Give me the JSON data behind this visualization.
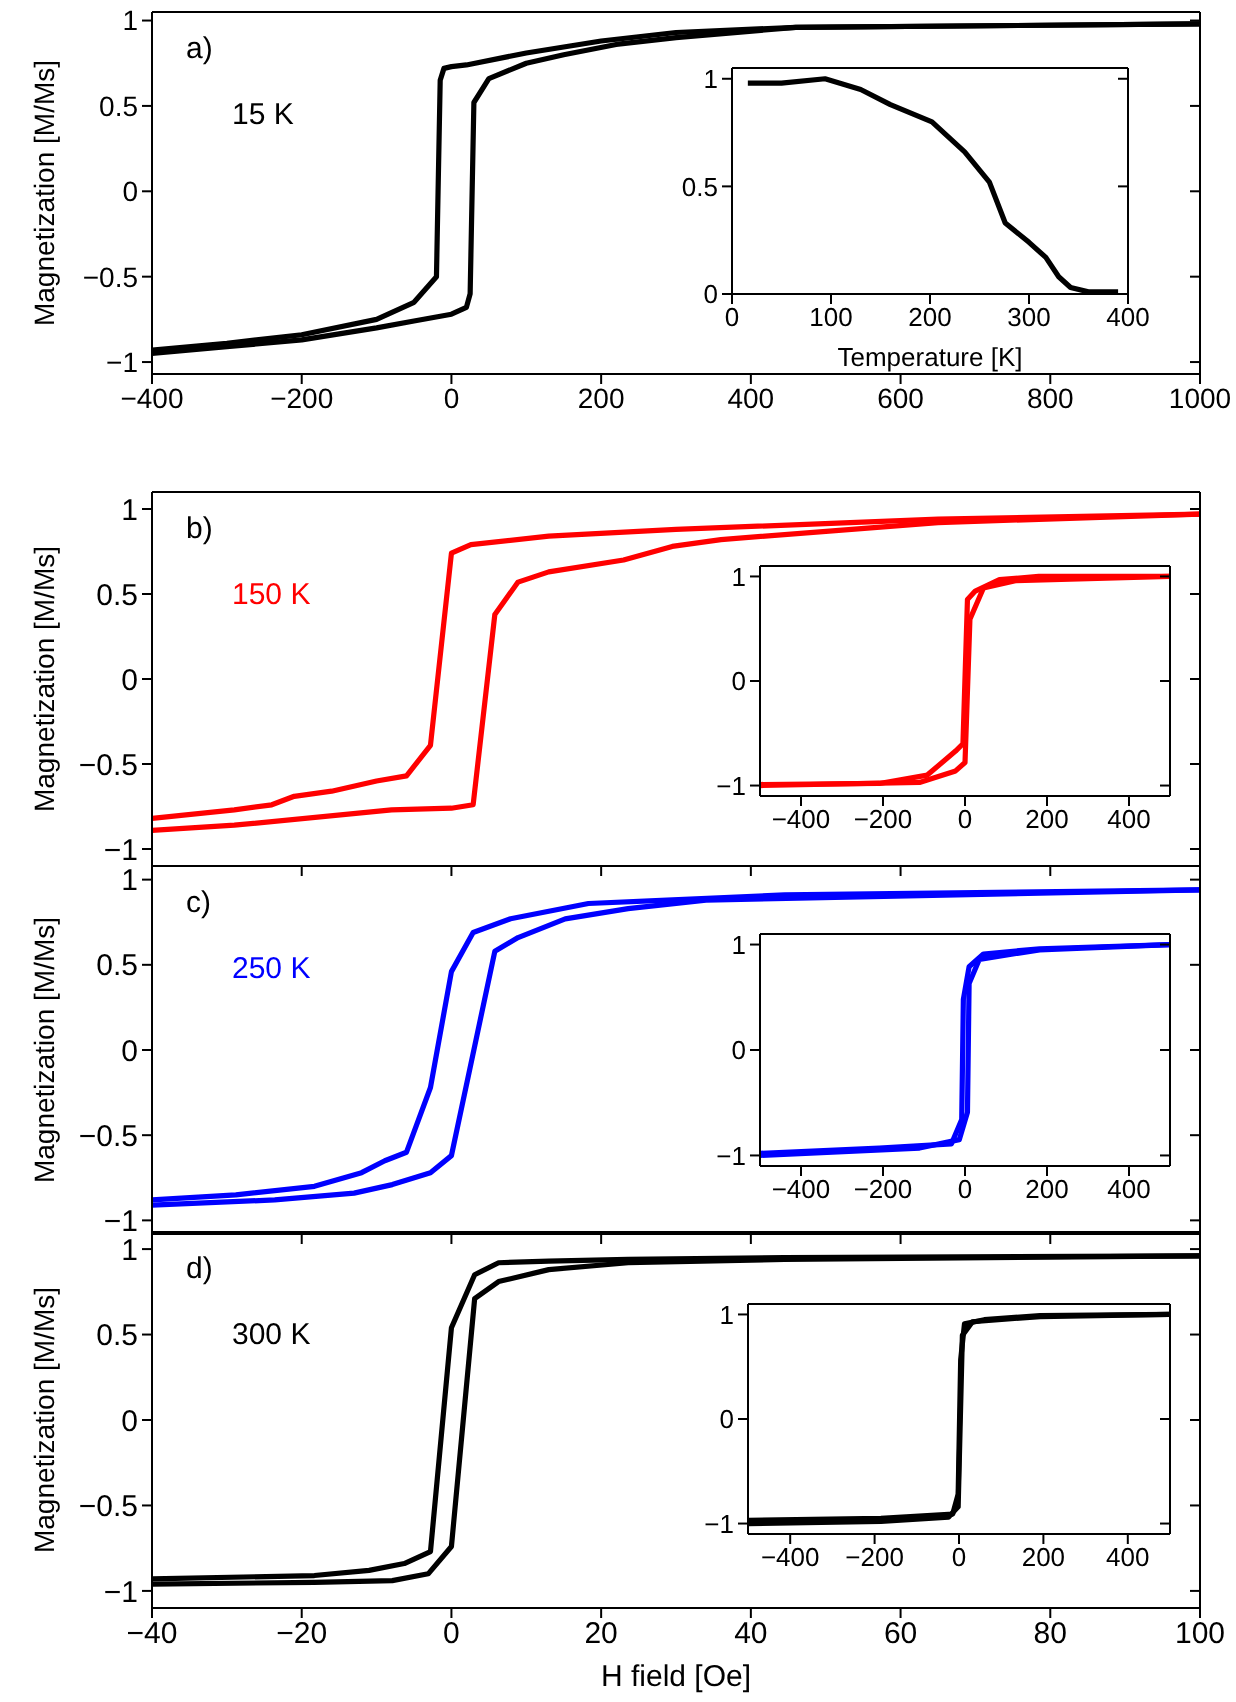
{
  "chart_data": [
    {
      "type": "line",
      "ylabel": "Magnetization [M/Ms]",
      "annotations": [
        "a)",
        "15 K"
      ],
      "xlim": [
        -400,
        1000
      ],
      "xticks": [
        -400,
        -200,
        0,
        200,
        400,
        600,
        800,
        1000
      ],
      "ylim": [
        -1.07,
        1.05
      ],
      "yticks": [
        -1,
        -0.5,
        0,
        0.5,
        1
      ],
      "series": [
        {
          "color": "#000000",
          "x": [
            1000,
            460,
            300,
            200,
            100,
            20,
            0,
            -10,
            -15,
            -20,
            -30,
            -40,
            -50,
            -100,
            -200,
            -300,
            -400
          ],
          "values": [
            0.98,
            0.96,
            0.93,
            0.88,
            0.81,
            0.74,
            0.73,
            0.72,
            0.65,
            -0.5,
            -0.55,
            -0.6,
            -0.65,
            -0.75,
            -0.84,
            -0.89,
            -0.93
          ]
        },
        {
          "color": "#000000",
          "x": [
            -400,
            -300,
            -200,
            -100,
            -50,
            0,
            20,
            25,
            30,
            50,
            100,
            150,
            220,
            300,
            460,
            1000
          ],
          "values": [
            -0.95,
            -0.91,
            -0.87,
            -0.8,
            -0.76,
            -0.72,
            -0.68,
            -0.6,
            0.52,
            0.66,
            0.75,
            0.8,
            0.86,
            0.9,
            0.96,
            0.98
          ]
        }
      ]
    },
    {
      "type": "line",
      "xlabel": "Temperature [K]",
      "xlim": [
        0,
        400
      ],
      "xticks": [
        0,
        100,
        200,
        300,
        400
      ],
      "ylim": [
        0,
        1.05
      ],
      "yticks": [
        0,
        0.5,
        1
      ],
      "series": [
        {
          "color": "#000000",
          "x": [
            16,
            50,
            94,
            130,
            160,
            202,
            235,
            260,
            276,
            300,
            317,
            330,
            342,
            360,
            390
          ],
          "values": [
            0.98,
            0.98,
            1,
            0.95,
            0.88,
            0.8,
            0.66,
            0.52,
            0.33,
            0.24,
            0.17,
            0.08,
            0.03,
            0.01,
            0.01
          ]
        }
      ]
    },
    {
      "type": "line",
      "ylabel": "Magnetization [M/Ms]",
      "annotations": [
        "b)",
        "150 K"
      ],
      "tick_labels": "y",
      "xlim": [
        -40,
        100
      ],
      "xticks": [
        -40,
        -20,
        0,
        20,
        40,
        60,
        80,
        100
      ],
      "ylim": [
        -1.1,
        1.1
      ],
      "yticks": [
        -1,
        -0.5,
        0,
        0.5,
        1
      ],
      "series": [
        {
          "color": "#ff0000",
          "x": [
            100,
            65,
            30,
            13,
            2.6,
            0,
            -2.8,
            -6,
            -10,
            -16,
            -21,
            -24,
            -29,
            -40
          ],
          "values": [
            0.97,
            0.94,
            0.88,
            0.84,
            0.79,
            0.74,
            -0.39,
            -0.57,
            -0.6,
            -0.66,
            -0.69,
            -0.74,
            -0.77,
            -0.82
          ]
        },
        {
          "color": "#ff0000",
          "x": [
            -40,
            -29,
            -8,
            0,
            2.9,
            5.8,
            8.9,
            13,
            23,
            29.5,
            36,
            65,
            100
          ],
          "values": [
            -0.89,
            -0.86,
            -0.77,
            -0.76,
            -0.74,
            0.38,
            0.57,
            0.63,
            0.7,
            0.78,
            0.82,
            0.92,
            0.97
          ]
        }
      ]
    },
    {
      "type": "line",
      "xlim": [
        -500,
        500
      ],
      "xticks": [
        -400,
        -200,
        0,
        200,
        400
      ],
      "ylim": [
        -1.1,
        1.1
      ],
      "yticks": [
        -1,
        0,
        1
      ],
      "series": [
        {
          "color": "#ff0000",
          "x": [
            500,
            180,
            84,
            25,
            6,
            -5,
            -23,
            -92,
            -209,
            -500
          ],
          "values": [
            1,
            1,
            0.97,
            0.86,
            0.78,
            -0.6,
            -0.67,
            -0.9,
            -0.98,
            -0.99
          ]
        },
        {
          "color": "#ff0000",
          "x": [
            -500,
            -111,
            -23,
            0,
            12,
            45,
            123,
            500
          ],
          "values": [
            -1,
            -0.97,
            -0.86,
            -0.78,
            0.59,
            0.89,
            0.96,
            1
          ]
        }
      ]
    },
    {
      "type": "line",
      "ylabel": "Magnetization [M/Ms]",
      "annotations": [
        "c)",
        "250 K"
      ],
      "tick_labels": "y",
      "xlim": [
        -40,
        100
      ],
      "xticks": [
        -40,
        -20,
        0,
        20,
        40,
        60,
        80,
        100
      ],
      "ylim": [
        -1.08,
        1.08
      ],
      "yticks": [
        -1,
        -0.5,
        0,
        0.5,
        1
      ],
      "series": [
        {
          "color": "#0000ff",
          "x": [
            100,
            44.5,
            28.8,
            18.3,
            7.9,
            2.9,
            0,
            -2.8,
            -6,
            -8.9,
            -12,
            -18.3,
            -28.8,
            -40
          ],
          "values": [
            0.94,
            0.91,
            0.88,
            0.86,
            0.77,
            0.69,
            0.46,
            -0.22,
            -0.6,
            -0.65,
            -0.72,
            -0.8,
            -0.85,
            -0.88
          ]
        },
        {
          "color": "#0000ff",
          "x": [
            -40,
            -23.6,
            -13,
            -7.9,
            -2.8,
            0,
            5.8,
            8.9,
            15.2,
            23.6,
            34,
            100
          ],
          "values": [
            -0.91,
            -0.88,
            -0.84,
            -0.79,
            -0.72,
            -0.62,
            0.58,
            0.66,
            0.77,
            0.83,
            0.88,
            0.94
          ]
        }
      ]
    },
    {
      "type": "line",
      "xlim": [
        -500,
        500
      ],
      "xticks": [
        -400,
        -200,
        0,
        200,
        400
      ],
      "ylim": [
        -1.1,
        1.1
      ],
      "yticks": [
        -1,
        0,
        1
      ],
      "series": [
        {
          "color": "#0000ff",
          "x": [
            500,
            182,
            45,
            10,
            -4,
            -8,
            -33,
            -209,
            -500
          ],
          "values": [
            1,
            0.96,
            0.91,
            0.79,
            0.48,
            -0.66,
            -0.89,
            -0.93,
            -0.98
          ]
        },
        {
          "color": "#0000ff",
          "x": [
            -500,
            -111,
            -14,
            6,
            10,
            35,
            182,
            500
          ],
          "values": [
            -1,
            -0.93,
            -0.85,
            -0.59,
            0.63,
            0.86,
            0.95,
            1
          ]
        }
      ]
    },
    {
      "type": "line",
      "xlabel": "H field [Oe]",
      "ylabel": "Magnetization [M/Ms]",
      "annotations": [
        "d)",
        "300 K"
      ],
      "xlim": [
        -40,
        100
      ],
      "xticks": [
        -40,
        -20,
        0,
        20,
        40,
        60,
        80,
        100
      ],
      "ylim": [
        -1.1,
        1.1
      ],
      "yticks": [
        -1,
        -0.5,
        0,
        0.5,
        1
      ],
      "series": [
        {
          "color": "#000000",
          "x": [
            100,
            44.5,
            23.6,
            13,
            6.3,
            3.1,
            0,
            -2.8,
            -6.3,
            -11,
            -18.3,
            -40
          ],
          "values": [
            0.96,
            0.95,
            0.94,
            0.93,
            0.92,
            0.85,
            0.54,
            -0.77,
            -0.84,
            -0.88,
            -0.91,
            -0.93
          ]
        },
        {
          "color": "#000000",
          "x": [
            -40,
            -18.3,
            -7.9,
            -3.1,
            0,
            3.1,
            6.3,
            13,
            23.6,
            44.5,
            100
          ],
          "values": [
            -0.96,
            -0.95,
            -0.94,
            -0.9,
            -0.74,
            0.71,
            0.81,
            0.88,
            0.92,
            0.94,
            0.96
          ]
        }
      ]
    },
    {
      "type": "line",
      "xlim": [
        -500,
        500
      ],
      "xticks": [
        -400,
        -200,
        0,
        200,
        400
      ],
      "ylim": [
        -1.1,
        1.1
      ],
      "yticks": [
        -1,
        0,
        1
      ],
      "series": [
        {
          "color": "#000000",
          "x": [
            500,
            192,
            60,
            13,
            4,
            -2,
            -15,
            -185,
            -500
          ],
          "values": [
            1,
            0.99,
            0.95,
            0.91,
            0.57,
            -0.72,
            -0.91,
            -0.95,
            -0.97
          ]
        },
        {
          "color": "#000000",
          "x": [
            -500,
            -185,
            -25,
            -2,
            8,
            32,
            192,
            500
          ],
          "values": [
            -1,
            -0.98,
            -0.94,
            -0.84,
            0.8,
            0.93,
            0.98,
            1
          ]
        }
      ]
    }
  ]
}
